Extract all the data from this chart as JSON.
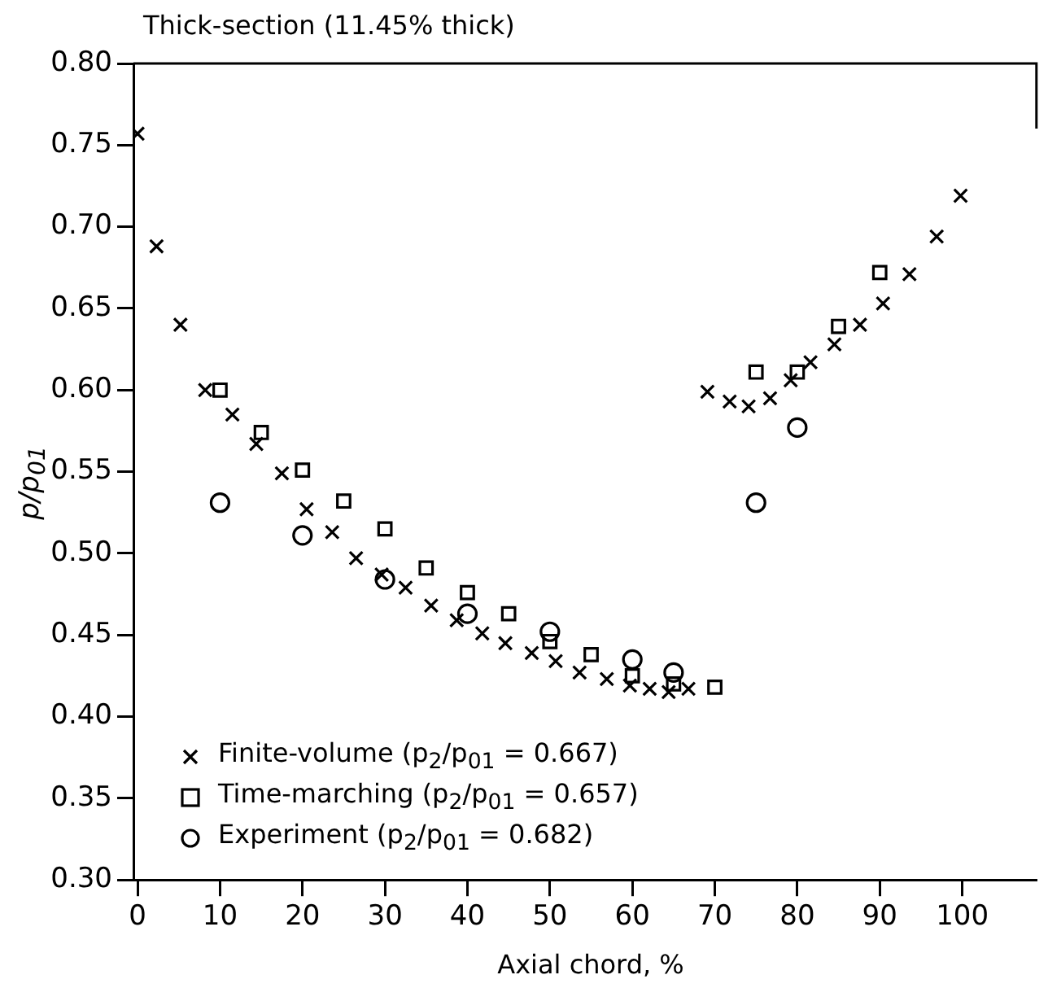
{
  "chart_data": {
    "type": "scatter",
    "title": "Thick-section (11.45% thick)",
    "xlabel": "Axial chord, %",
    "ylabel": "p/p$_{01}$",
    "xlim": [
      -0.5,
      109
    ],
    "xticks": [
      0,
      10,
      20,
      30,
      40,
      50,
      60,
      70,
      80,
      90,
      100
    ],
    "ylim": [
      0.3,
      0.8
    ],
    "yticks": [
      {
        "value": 0.3,
        "label": "0.30"
      },
      0.35,
      {
        "value": 0.4,
        "label": "0.40"
      },
      0.45,
      {
        "value": 0.5,
        "label": "0.50"
      },
      0.55,
      {
        "value": 0.6,
        "label": "0.60"
      },
      0.65,
      {
        "value": 0.7,
        "label": "0.70"
      },
      0.75,
      {
        "value": 0.8,
        "label": "0.80"
      }
    ],
    "grid": false,
    "legend": "bottom left",
    "series": [
      {
        "name": "Finite-volume (p$_{2}$/p$_{01}$ = 0.667)",
        "color": "#000000",
        "marker": "cross",
        "x": [
          0,
          2.3,
          5.2,
          8.2,
          11.5,
          14.4,
          17.5,
          20.5,
          23.6,
          26.5,
          29.6,
          32.5,
          35.6,
          38.7,
          41.8,
          44.6,
          47.8,
          50.7,
          53.6,
          56.9,
          59.7,
          62.1,
          64.4,
          66.8,
          69.1,
          71.8,
          74.1,
          76.7,
          79.2,
          81.6,
          84.5,
          87.6,
          90.4,
          93.6,
          96.9,
          99.8
        ],
        "values": [
          0.757,
          0.688,
          0.64,
          0.6,
          0.585,
          0.567,
          0.549,
          0.527,
          0.513,
          0.497,
          0.487,
          0.479,
          0.468,
          0.459,
          0.451,
          0.445,
          0.439,
          0.434,
          0.427,
          0.423,
          0.419,
          0.417,
          0.415,
          0.417,
          0.599,
          0.593,
          0.59,
          0.595,
          0.606,
          0.617,
          0.628,
          0.64,
          0.653,
          0.671,
          0.694,
          0.719
        ]
      },
      {
        "name": "Time-marching (p$_{2}$/p$_{01}$ = 0.657)",
        "color": "#000000",
        "marker": "square",
        "x": [
          10,
          15,
          20,
          25,
          30,
          35,
          40,
          45,
          50,
          55,
          60,
          65,
          70,
          75,
          80,
          85,
          90
        ],
        "values": [
          0.6,
          0.574,
          0.551,
          0.532,
          0.515,
          0.491,
          0.476,
          0.463,
          0.446,
          0.438,
          0.425,
          0.42,
          0.418,
          0.611,
          0.611,
          0.639,
          0.672
        ]
      },
      {
        "name": "Experiment (p$_{2}$/p$_{01}$ = 0.682)",
        "color": "#000000",
        "marker": "circle",
        "x": [
          10,
          20,
          30,
          40,
          50,
          60,
          65,
          75,
          80
        ],
        "values": [
          0.531,
          0.511,
          0.484,
          0.463,
          0.452,
          0.435,
          0.427,
          0.531,
          0.577
        ]
      }
    ]
  }
}
